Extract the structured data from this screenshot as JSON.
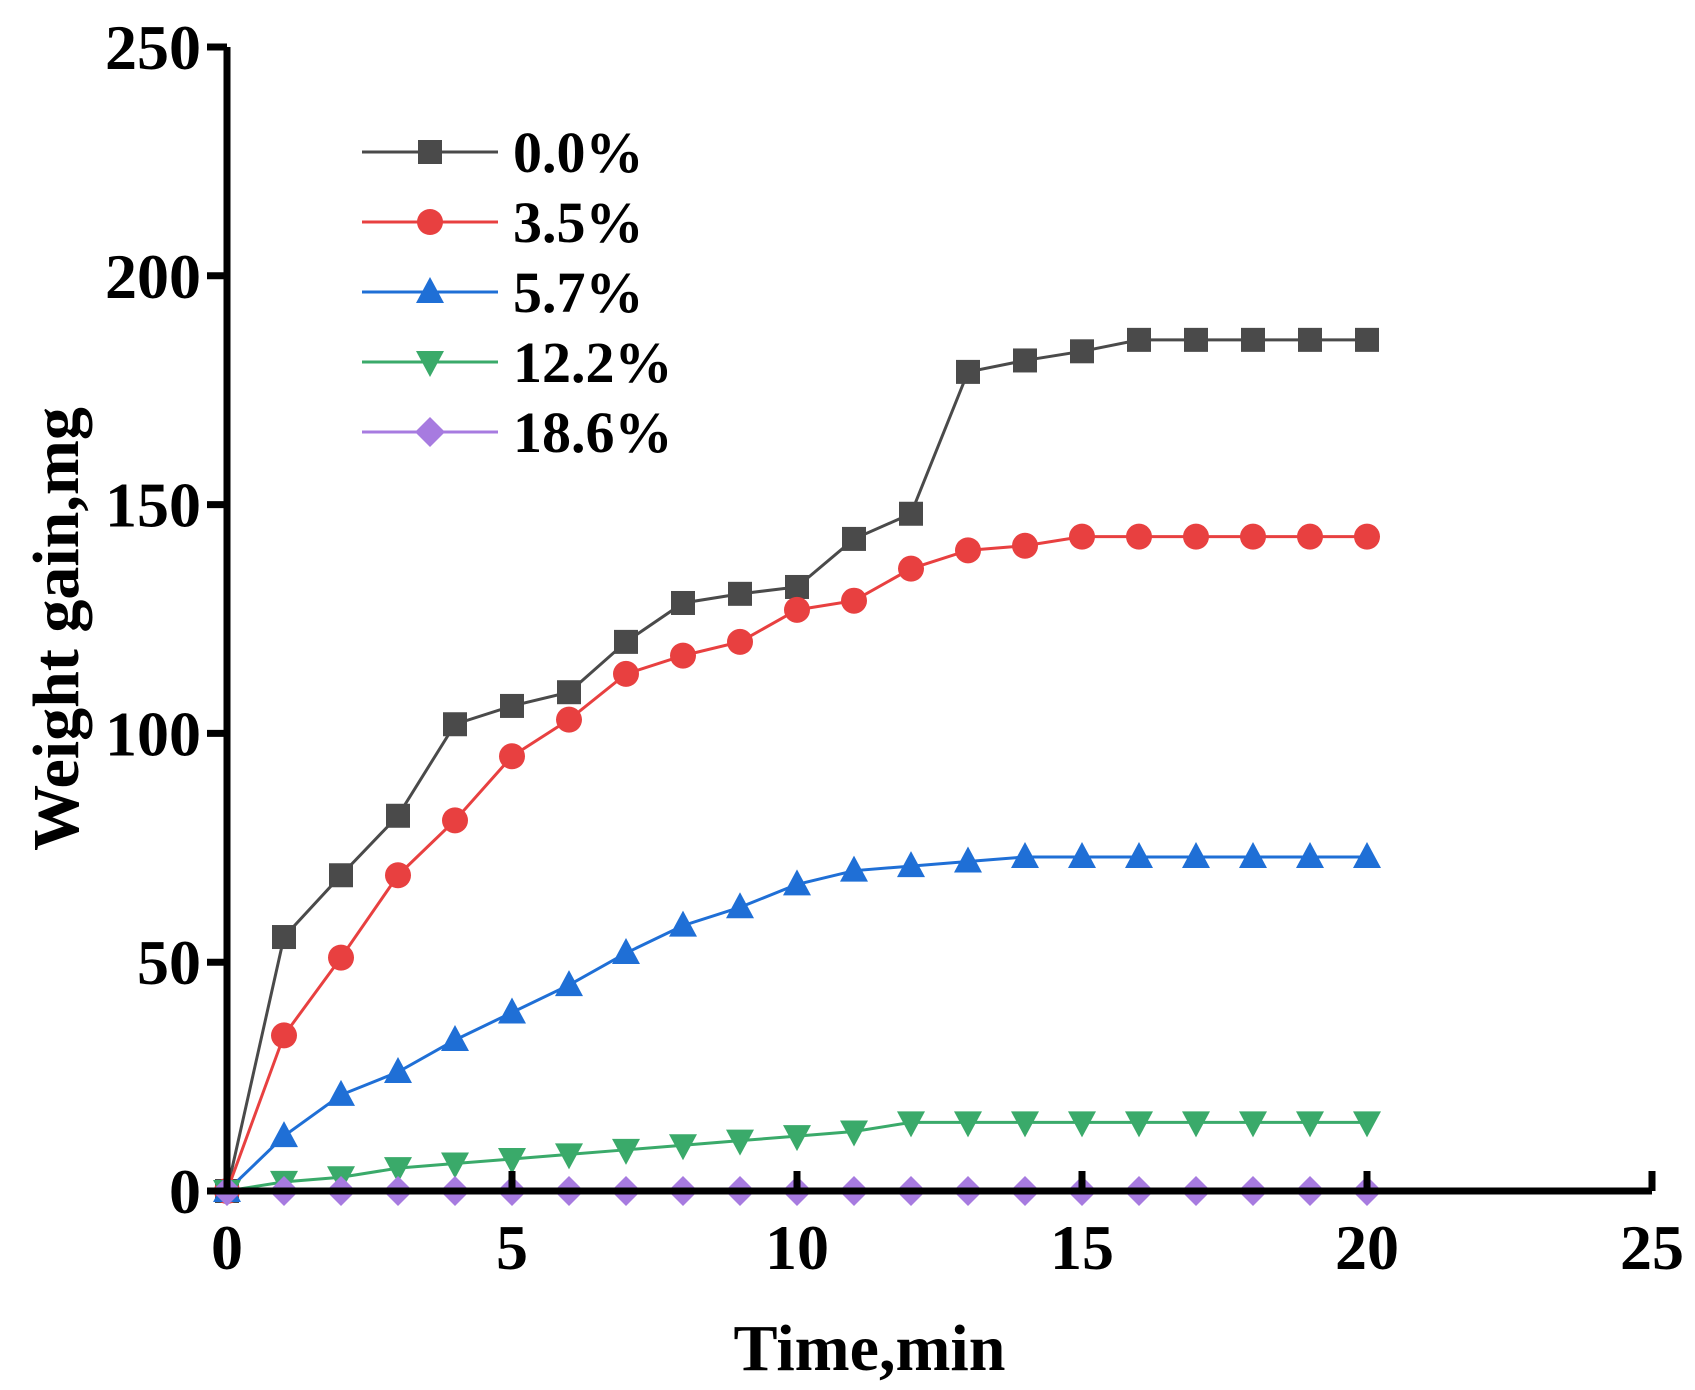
{
  "chart_data": {
    "type": "line",
    "title": "",
    "xlabel": "Time,min",
    "ylabel": "Weight gain,mg",
    "xlim": [
      0,
      25
    ],
    "ylim": [
      0,
      250
    ],
    "xticks": [
      0,
      5,
      10,
      15,
      20,
      25
    ],
    "yticks": [
      0,
      50,
      100,
      150,
      200,
      250
    ],
    "xtick_labels": [
      "0",
      "5",
      "10",
      "15",
      "20",
      "25"
    ],
    "ytick_labels": [
      "0",
      "50",
      "100",
      "150",
      "200",
      "250"
    ],
    "grid": false,
    "legend_position": "top-left",
    "x": [
      0,
      1,
      2,
      3,
      4,
      5,
      6,
      7,
      8,
      9,
      10,
      11,
      12,
      13,
      14,
      15,
      16,
      17,
      18,
      19,
      20
    ],
    "series": [
      {
        "name": "0.0%",
        "color": "#4a4a4a",
        "marker": "square",
        "values": [
          0,
          55.5,
          69,
          82,
          102,
          106,
          109,
          120,
          128.5,
          130.5,
          132,
          142.5,
          148,
          179,
          181.5,
          183.5,
          186,
          186,
          186,
          186,
          186
        ]
      },
      {
        "name": "3.5%",
        "color": "#e84040",
        "marker": "circle",
        "values": [
          0,
          34,
          51,
          69,
          81,
          95,
          103,
          113,
          117,
          120,
          127,
          129,
          136,
          140,
          141,
          143,
          143,
          143,
          143,
          143,
          143
        ]
      },
      {
        "name": "5.7%",
        "color": "#1f6fd6",
        "marker": "triangle-up",
        "values": [
          0,
          12,
          21,
          26,
          33,
          39,
          45,
          52,
          58,
          62,
          67,
          70,
          71,
          72,
          73,
          73,
          73,
          73,
          73,
          73,
          73
        ]
      },
      {
        "name": "12.2%",
        "color": "#3aaa6a",
        "marker": "triangle-down",
        "values": [
          0,
          2,
          3,
          5,
          6,
          7,
          8,
          9,
          10,
          11,
          12,
          13,
          15,
          15,
          15,
          15,
          15,
          15,
          15,
          15,
          15
        ]
      },
      {
        "name": "18.6%",
        "color": "#a77be0",
        "marker": "diamond",
        "values": [
          0,
          0,
          0,
          0,
          0,
          0,
          0,
          0,
          0,
          0,
          0,
          0,
          0,
          0,
          0,
          0,
          0,
          0,
          0,
          0,
          0
        ]
      }
    ]
  }
}
